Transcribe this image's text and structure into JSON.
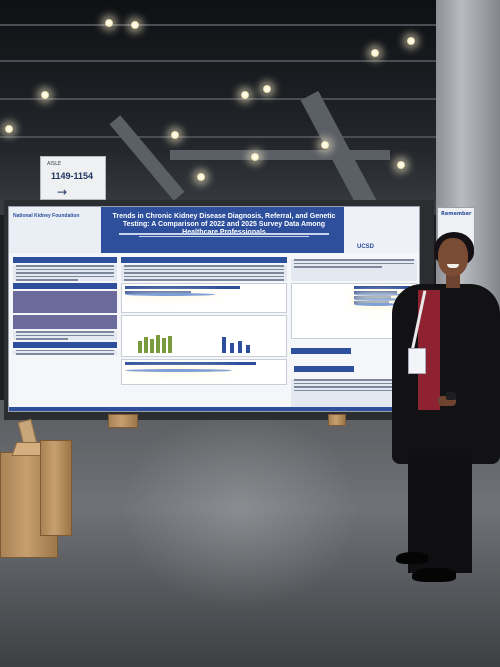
{
  "aisle_sign": {
    "label": "AISLE",
    "range": "1149-1154",
    "arrow": "→"
  },
  "poster": {
    "organization": "National Kidney Foundation",
    "title": "Trends in Chronic Kidney Disease Diagnosis, Referral, and Genetic Testing: A Comparison of 2022 and 2025 Survey Data Among Healthcare Professionals",
    "affiliation": "UCSD"
  },
  "standee": {
    "text": "Remember"
  },
  "colors": {
    "poster_primary": "#2d4f9c",
    "poster_accent": "#6b6b9c",
    "chart_green": "#7a9a3e"
  }
}
